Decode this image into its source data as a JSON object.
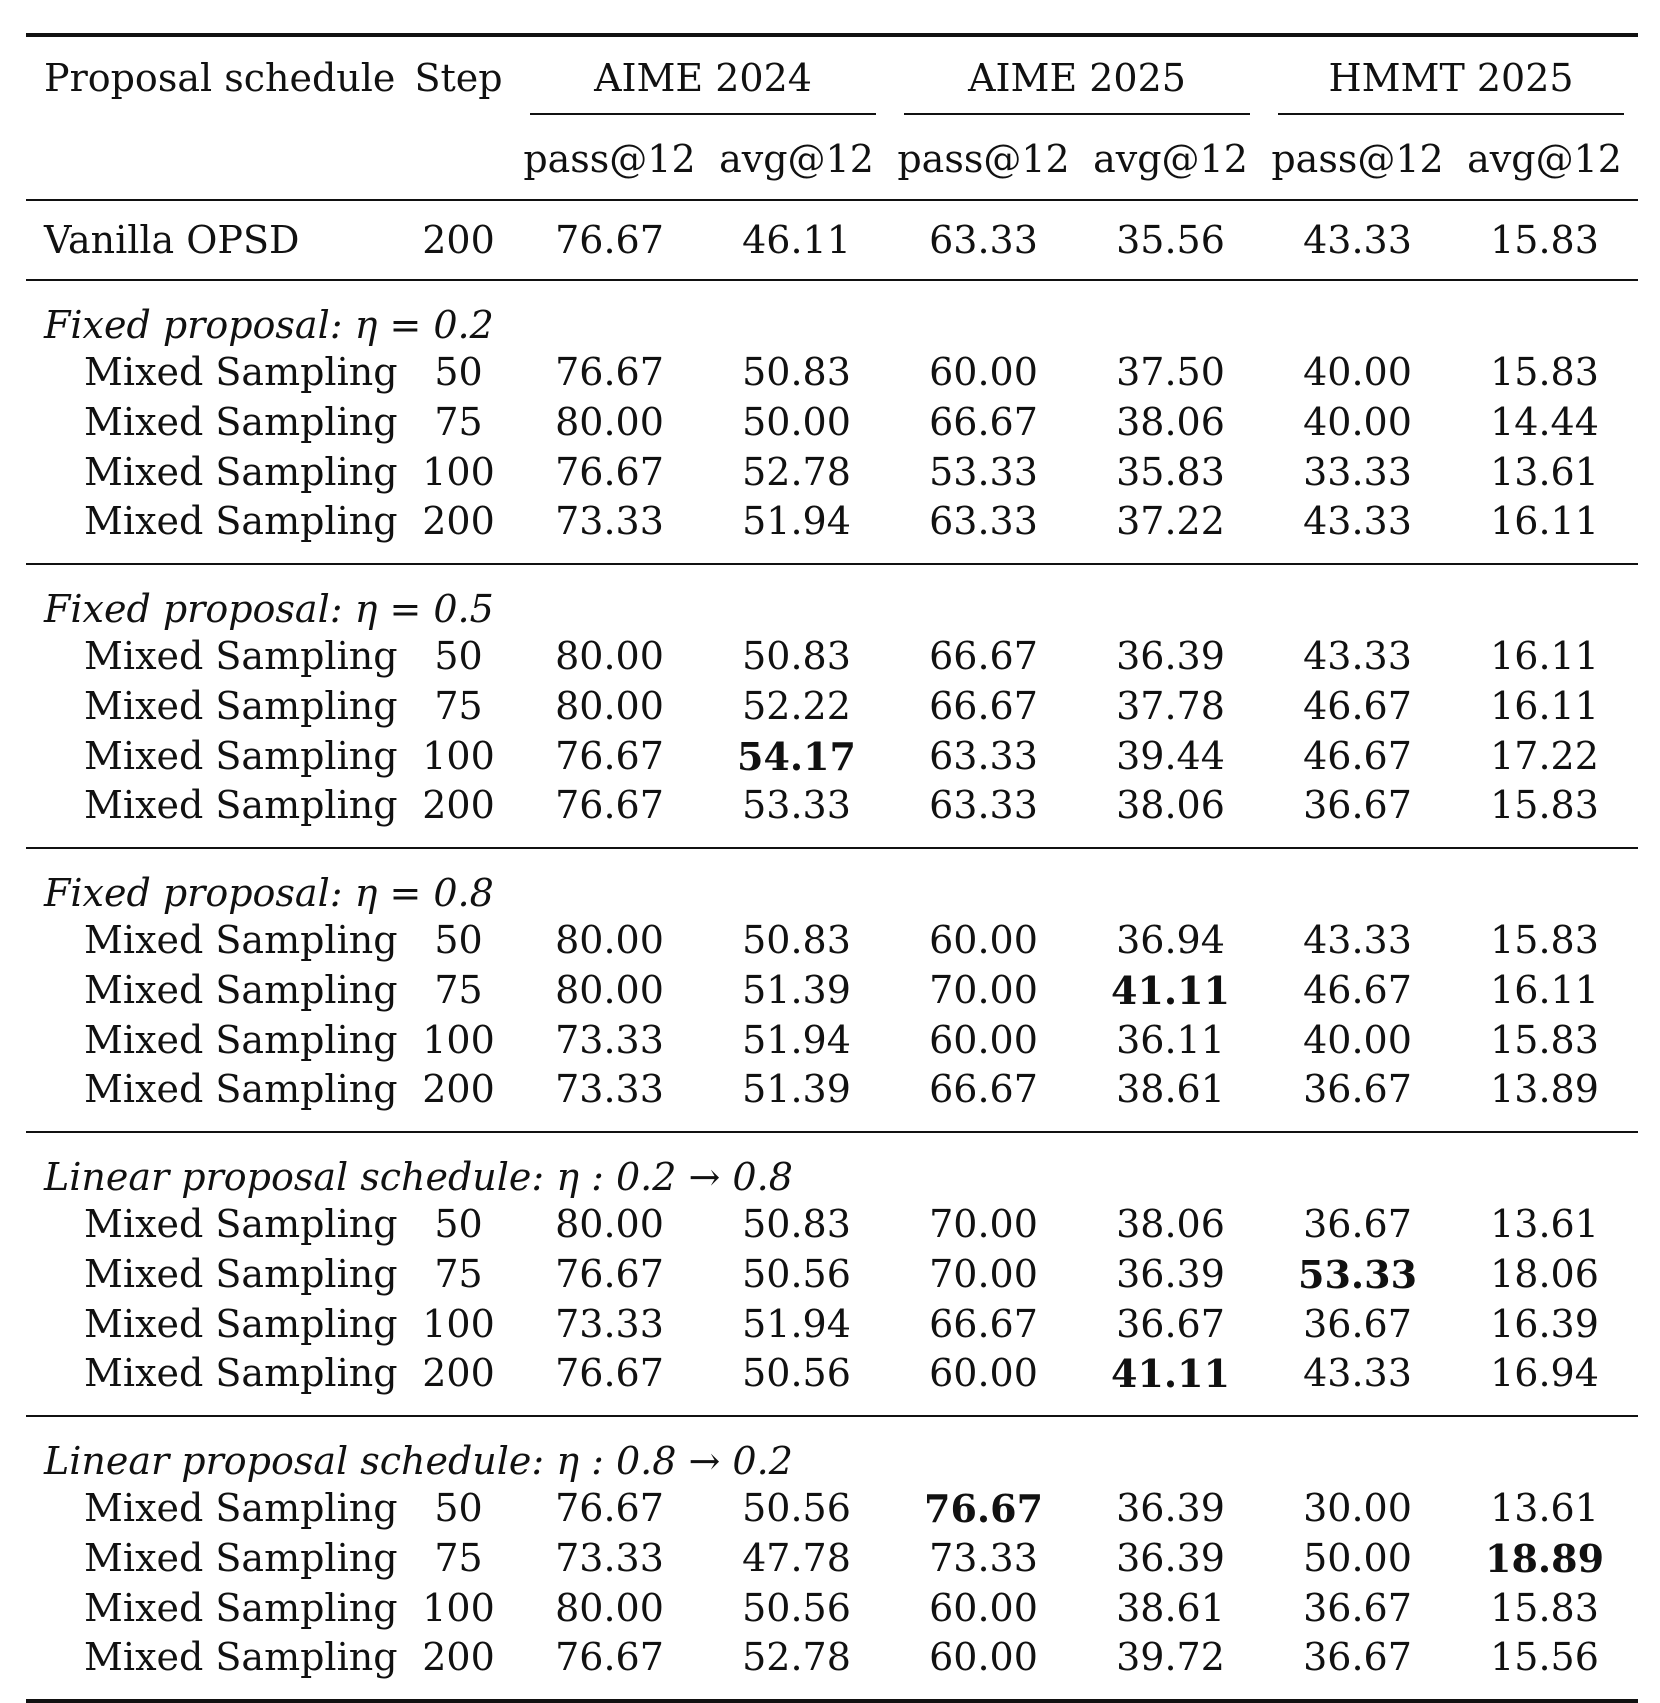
{
  "header": {
    "proposal_schedule": "Proposal schedule",
    "step": "Step",
    "benchmarks": [
      "AIME 2024",
      "AIME 2025",
      "HMMT 2025"
    ],
    "metrics": [
      "pass@12",
      "avg@12",
      "pass@12",
      "avg@12",
      "pass@12",
      "avg@12"
    ]
  },
  "vanilla": {
    "name": "Vanilla OPSD",
    "step": "200",
    "values": [
      "76.67",
      "46.11",
      "63.33",
      "35.56",
      "43.33",
      "15.83"
    ]
  },
  "groups": [
    {
      "title": "Fixed proposal: η = 0.2",
      "rows": [
        {
          "name": "Mixed Sampling",
          "step": "50",
          "values": [
            "76.67",
            "50.83",
            "60.00",
            "37.50",
            "40.00",
            "15.83"
          ],
          "bold": []
        },
        {
          "name": "Mixed Sampling",
          "step": "75",
          "values": [
            "80.00",
            "50.00",
            "66.67",
            "38.06",
            "40.00",
            "14.44"
          ],
          "bold": []
        },
        {
          "name": "Mixed Sampling",
          "step": "100",
          "values": [
            "76.67",
            "52.78",
            "53.33",
            "35.83",
            "33.33",
            "13.61"
          ],
          "bold": []
        },
        {
          "name": "Mixed Sampling",
          "step": "200",
          "values": [
            "73.33",
            "51.94",
            "63.33",
            "37.22",
            "43.33",
            "16.11"
          ],
          "bold": []
        }
      ]
    },
    {
      "title": "Fixed proposal: η = 0.5",
      "rows": [
        {
          "name": "Mixed Sampling",
          "step": "50",
          "values": [
            "80.00",
            "50.83",
            "66.67",
            "36.39",
            "43.33",
            "16.11"
          ],
          "bold": []
        },
        {
          "name": "Mixed Sampling",
          "step": "75",
          "values": [
            "80.00",
            "52.22",
            "66.67",
            "37.78",
            "46.67",
            "16.11"
          ],
          "bold": []
        },
        {
          "name": "Mixed Sampling",
          "step": "100",
          "values": [
            "76.67",
            "54.17",
            "63.33",
            "39.44",
            "46.67",
            "17.22"
          ],
          "bold": [
            1
          ]
        },
        {
          "name": "Mixed Sampling",
          "step": "200",
          "values": [
            "76.67",
            "53.33",
            "63.33",
            "38.06",
            "36.67",
            "15.83"
          ],
          "bold": []
        }
      ]
    },
    {
      "title": "Fixed proposal: η = 0.8",
      "rows": [
        {
          "name": "Mixed Sampling",
          "step": "50",
          "values": [
            "80.00",
            "50.83",
            "60.00",
            "36.94",
            "43.33",
            "15.83"
          ],
          "bold": []
        },
        {
          "name": "Mixed Sampling",
          "step": "75",
          "values": [
            "80.00",
            "51.39",
            "70.00",
            "41.11",
            "46.67",
            "16.11"
          ],
          "bold": [
            3
          ]
        },
        {
          "name": "Mixed Sampling",
          "step": "100",
          "values": [
            "73.33",
            "51.94",
            "60.00",
            "36.11",
            "40.00",
            "15.83"
          ],
          "bold": []
        },
        {
          "name": "Mixed Sampling",
          "step": "200",
          "values": [
            "73.33",
            "51.39",
            "66.67",
            "38.61",
            "36.67",
            "13.89"
          ],
          "bold": []
        }
      ]
    },
    {
      "title": "Linear proposal schedule: η : 0.2 → 0.8",
      "rows": [
        {
          "name": "Mixed Sampling",
          "step": "50",
          "values": [
            "80.00",
            "50.83",
            "70.00",
            "38.06",
            "36.67",
            "13.61"
          ],
          "bold": []
        },
        {
          "name": "Mixed Sampling",
          "step": "75",
          "values": [
            "76.67",
            "50.56",
            "70.00",
            "36.39",
            "53.33",
            "18.06"
          ],
          "bold": [
            4
          ]
        },
        {
          "name": "Mixed Sampling",
          "step": "100",
          "values": [
            "73.33",
            "51.94",
            "66.67",
            "36.67",
            "36.67",
            "16.39"
          ],
          "bold": []
        },
        {
          "name": "Mixed Sampling",
          "step": "200",
          "values": [
            "76.67",
            "50.56",
            "60.00",
            "41.11",
            "43.33",
            "16.94"
          ],
          "bold": [
            3
          ]
        }
      ]
    },
    {
      "title": "Linear proposal schedule: η : 0.8 → 0.2",
      "rows": [
        {
          "name": "Mixed Sampling",
          "step": "50",
          "values": [
            "76.67",
            "50.56",
            "76.67",
            "36.39",
            "30.00",
            "13.61"
          ],
          "bold": [
            2
          ]
        },
        {
          "name": "Mixed Sampling",
          "step": "75",
          "values": [
            "73.33",
            "47.78",
            "73.33",
            "36.39",
            "50.00",
            "18.89"
          ],
          "bold": [
            5
          ]
        },
        {
          "name": "Mixed Sampling",
          "step": "100",
          "values": [
            "80.00",
            "50.56",
            "60.00",
            "38.61",
            "36.67",
            "15.83"
          ],
          "bold": []
        },
        {
          "name": "Mixed Sampling",
          "step": "200",
          "values": [
            "76.67",
            "52.78",
            "60.00",
            "39.72",
            "36.67",
            "15.56"
          ],
          "bold": []
        }
      ]
    }
  ]
}
